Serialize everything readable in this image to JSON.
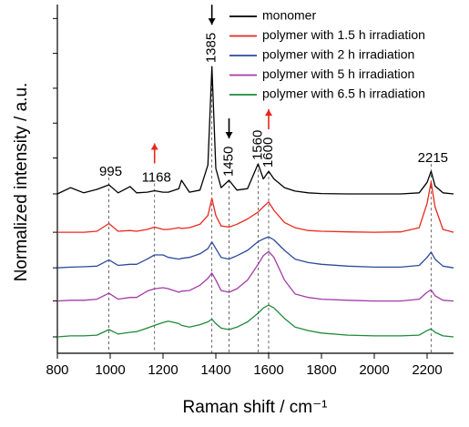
{
  "chart_data": {
    "type": "line",
    "xlabel": "Raman shift / cm⁻¹",
    "ylabel": "Normalized intensity / a.u.",
    "xlim": [
      800,
      2300
    ],
    "xticks": [
      800,
      1000,
      1200,
      1400,
      1600,
      1800,
      2000,
      2200
    ],
    "ylim": [
      0,
      10
    ],
    "yticks": [
      0.47,
      1.5,
      2.45,
      3.47,
      4.57,
      5.6,
      6.6,
      7.6,
      8.6,
      9.6
    ],
    "x": [
      800,
      850,
      900,
      950,
      995,
      1030,
      1075,
      1100,
      1140,
      1168,
      1200,
      1220,
      1260,
      1270,
      1300,
      1340,
      1370,
      1385,
      1400,
      1420,
      1450,
      1480,
      1520,
      1560,
      1580,
      1600,
      1620,
      1660,
      1700,
      1750,
      1800,
      1900,
      2000,
      2100,
      2170,
      2200,
      2215,
      2230,
      2260,
      2300
    ],
    "series": [
      {
        "name": "monomer",
        "color": "#000000",
        "values": [
          4.57,
          4.75,
          4.6,
          4.7,
          4.83,
          4.6,
          4.78,
          4.6,
          4.62,
          4.66,
          4.62,
          4.62,
          4.72,
          4.96,
          4.62,
          4.68,
          5.4,
          8.22,
          5.3,
          4.75,
          4.96,
          4.68,
          4.72,
          5.43,
          5.0,
          5.22,
          5.0,
          4.75,
          4.65,
          4.6,
          4.58,
          4.57,
          4.57,
          4.57,
          4.6,
          4.9,
          5.22,
          4.8,
          4.6,
          4.57
        ]
      },
      {
        "name": "polymer with 1.5 h irradiation",
        "color": "#e8281e",
        "values": [
          3.47,
          3.47,
          3.47,
          3.5,
          3.72,
          3.5,
          3.52,
          3.5,
          3.55,
          3.62,
          3.55,
          3.55,
          3.6,
          3.58,
          3.6,
          3.7,
          3.95,
          4.44,
          3.95,
          3.65,
          3.62,
          3.7,
          3.85,
          4.05,
          4.2,
          4.34,
          4.1,
          3.75,
          3.6,
          3.52,
          3.5,
          3.48,
          3.47,
          3.48,
          3.6,
          4.3,
          4.91,
          4.2,
          3.55,
          3.47
        ]
      },
      {
        "name": "polymer with 2 h irradiation",
        "color": "#2c4a9c",
        "values": [
          2.45,
          2.47,
          2.48,
          2.5,
          2.68,
          2.52,
          2.55,
          2.55,
          2.7,
          2.82,
          2.82,
          2.75,
          2.7,
          2.72,
          2.75,
          2.85,
          3.0,
          3.19,
          3.0,
          2.75,
          2.7,
          2.8,
          2.95,
          3.2,
          3.28,
          3.34,
          3.25,
          2.95,
          2.7,
          2.6,
          2.55,
          2.5,
          2.47,
          2.47,
          2.52,
          2.75,
          2.9,
          2.7,
          2.5,
          2.45
        ]
      },
      {
        "name": "polymer with 5 h irradiation",
        "color": "#a23ba6",
        "values": [
          1.5,
          1.52,
          1.52,
          1.55,
          1.72,
          1.55,
          1.6,
          1.6,
          1.78,
          1.85,
          1.88,
          1.85,
          1.75,
          1.78,
          1.8,
          1.95,
          2.15,
          2.3,
          2.1,
          1.8,
          1.75,
          1.85,
          2.1,
          2.55,
          2.8,
          2.92,
          2.75,
          2.1,
          1.7,
          1.6,
          1.55,
          1.52,
          1.5,
          1.5,
          1.55,
          1.75,
          1.82,
          1.65,
          1.52,
          1.5
        ]
      },
      {
        "name": "polymer with 6.5 h irradiation",
        "color": "#1f8a3a",
        "values": [
          0.47,
          0.5,
          0.5,
          0.52,
          0.68,
          0.55,
          0.6,
          0.62,
          0.72,
          0.8,
          0.88,
          0.92,
          0.85,
          0.8,
          0.75,
          0.82,
          0.9,
          0.98,
          0.85,
          0.72,
          0.68,
          0.75,
          0.9,
          1.15,
          1.3,
          1.38,
          1.3,
          1.0,
          0.75,
          0.65,
          0.58,
          0.52,
          0.5,
          0.5,
          0.52,
          0.65,
          0.7,
          0.6,
          0.5,
          0.47
        ]
      }
    ],
    "peaks": [
      {
        "x": 995,
        "rotated": false
      },
      {
        "x": 1168,
        "rotated": false
      },
      {
        "x": 1385,
        "rotated": true
      },
      {
        "x": 1450,
        "rotated": true
      },
      {
        "x": 1560,
        "rotated": true
      },
      {
        "x": 1600,
        "rotated": true
      },
      {
        "x": 2215,
        "rotated": false
      }
    ],
    "arrows": [
      {
        "x": 1385,
        "direction": "down",
        "color": "#000000"
      },
      {
        "x": 1450,
        "direction": "down",
        "color": "#000000"
      },
      {
        "x": 1168,
        "direction": "up",
        "color": "#e8281e"
      },
      {
        "x": 1600,
        "direction": "up",
        "color": "#e8281e"
      }
    ],
    "legend": "top-right"
  }
}
